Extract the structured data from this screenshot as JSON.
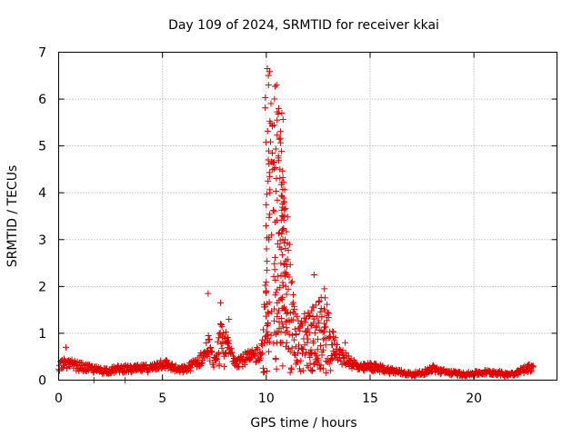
{
  "chart_data": {
    "type": "scatter",
    "title": "Day 109 of 2024, SRMTID for receiver kkai",
    "xlabel": "GPS time / hours",
    "ylabel": "SRMTID / TECUs",
    "xlim": [
      0,
      24
    ],
    "ylim": [
      0,
      7
    ],
    "xticks": [
      0,
      5,
      10,
      15,
      20
    ],
    "yticks": [
      0,
      1,
      2,
      3,
      4,
      5,
      6,
      7
    ],
    "grid": true,
    "marker": "+",
    "color": "#e00000",
    "x_range_observed": [
      0,
      22.9
    ],
    "envelope": {
      "x": [
        0,
        0.3,
        0.6,
        1.0,
        1.5,
        2.0,
        2.5,
        3.0,
        3.5,
        4.0,
        4.5,
        5.0,
        5.4,
        5.8,
        6.2,
        6.6,
        7.0,
        7.2,
        7.5,
        7.8,
        8.0,
        8.3,
        8.6,
        9.0,
        9.4,
        9.8,
        10.0,
        10.2,
        10.4,
        10.6,
        10.8,
        11.0,
        11.3,
        11.6,
        12.0,
        12.4,
        12.8,
        13.2,
        13.6,
        14.0,
        14.5,
        15.0,
        15.5,
        16.0,
        16.5,
        17.0,
        17.5,
        18.0,
        18.5,
        19.0,
        19.5,
        20.0,
        20.5,
        21.0,
        21.5,
        22.0,
        22.5,
        22.9
      ],
      "y": [
        0.35,
        0.45,
        0.4,
        0.35,
        0.3,
        0.25,
        0.25,
        0.3,
        0.28,
        0.3,
        0.32,
        0.45,
        0.35,
        0.25,
        0.3,
        0.45,
        0.6,
        0.9,
        0.4,
        1.2,
        1.0,
        0.7,
        0.5,
        0.55,
        0.6,
        0.8,
        2.5,
        6.5,
        5.0,
        5.8,
        4.5,
        3.8,
        1.8,
        1.2,
        1.5,
        1.6,
        1.8,
        1.0,
        0.6,
        0.5,
        0.3,
        0.35,
        0.3,
        0.25,
        0.2,
        0.15,
        0.18,
        0.3,
        0.22,
        0.18,
        0.15,
        0.17,
        0.2,
        0.2,
        0.15,
        0.18,
        0.3,
        0.35
      ]
    },
    "outliers": [
      {
        "x": 1.7,
        "y": 0.0
      },
      {
        "x": 3.2,
        "y": 0.0
      },
      {
        "x": 0.35,
        "y": 0.7
      },
      {
        "x": 7.2,
        "y": 1.85
      },
      {
        "x": 7.8,
        "y": 1.65
      },
      {
        "x": 8.2,
        "y": 1.3
      },
      {
        "x": 10.05,
        "y": 6.65
      },
      {
        "x": 10.1,
        "y": 6.5
      },
      {
        "x": 10.5,
        "y": 6.3
      },
      {
        "x": 10.6,
        "y": 5.8
      },
      {
        "x": 10.75,
        "y": 5.7
      },
      {
        "x": 10.85,
        "y": 3.8
      },
      {
        "x": 10.8,
        "y": 3.0
      },
      {
        "x": 11.1,
        "y": 2.2
      },
      {
        "x": 12.3,
        "y": 2.25
      },
      {
        "x": 12.8,
        "y": 1.95
      },
      {
        "x": 13.8,
        "y": 0.8
      }
    ]
  }
}
